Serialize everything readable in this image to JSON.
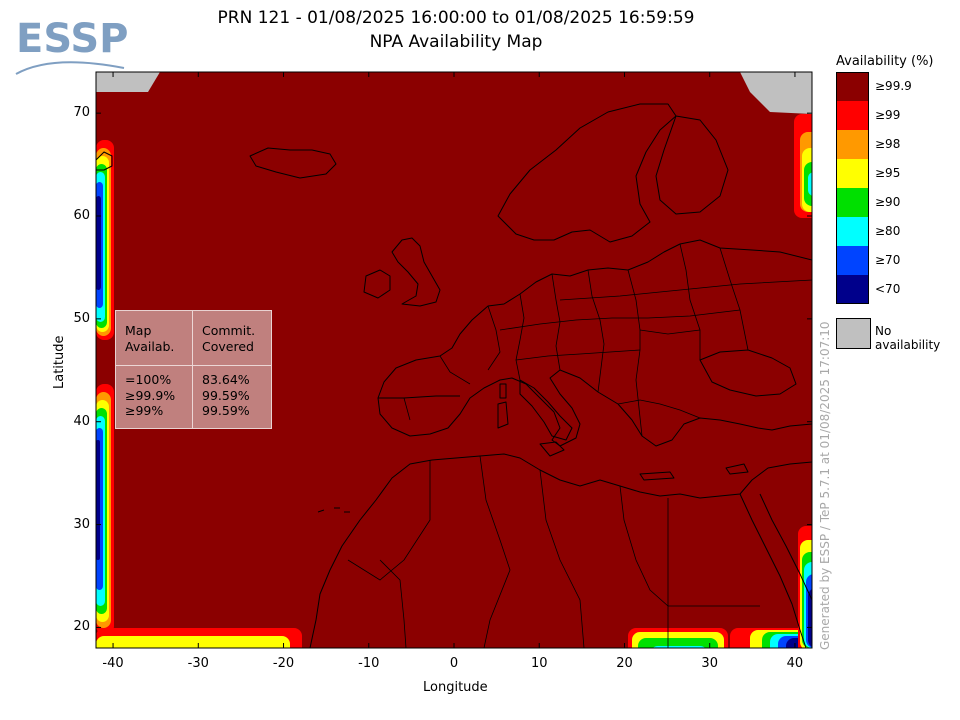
{
  "title": {
    "line1": "PRN 121 - 01/08/2025 16:00:00 to 01/08/2025 16:59:59",
    "line2": "NPA Availability Map"
  },
  "logo": {
    "text": "ESSP"
  },
  "axes": {
    "xlabel": "Longitude",
    "ylabel": "Latitude",
    "xticks": [
      "-40",
      "-30",
      "-20",
      "-10",
      "0",
      "10",
      "20",
      "30",
      "40"
    ],
    "yticks": [
      "70",
      "60",
      "50",
      "40",
      "30",
      "20"
    ],
    "xlim": [
      -42,
      42
    ],
    "ylim": [
      18,
      74
    ]
  },
  "legend": {
    "title": "Availability (%)",
    "items": [
      {
        "label": "≥99.9",
        "color": "#8b0000"
      },
      {
        "label": "≥99",
        "color": "#ff0000"
      },
      {
        "label": "≥98",
        "color": "#ff9900"
      },
      {
        "label": "≥95",
        "color": "#ffff00"
      },
      {
        "label": "≥90",
        "color": "#00e000"
      },
      {
        "label": "≥80",
        "color": "#00ffff"
      },
      {
        "label": "≥70",
        "color": "#0044ff"
      },
      {
        "label": "<70",
        "color": "#00008b"
      }
    ],
    "no_data": {
      "label": "No availability",
      "color": "#c0c0c0"
    }
  },
  "stats_table": {
    "col1_header": "Map\nAvailab.",
    "col2_header": "Commit.\nCovered",
    "col1_values": "=100%\n≥99.9%\n≥99%",
    "col2_values": "83.64%\n99.59%\n99.59%"
  },
  "credit": "Generated by ESSP / TeP 5.7.1 at 01/08/2025 17:07:10"
}
